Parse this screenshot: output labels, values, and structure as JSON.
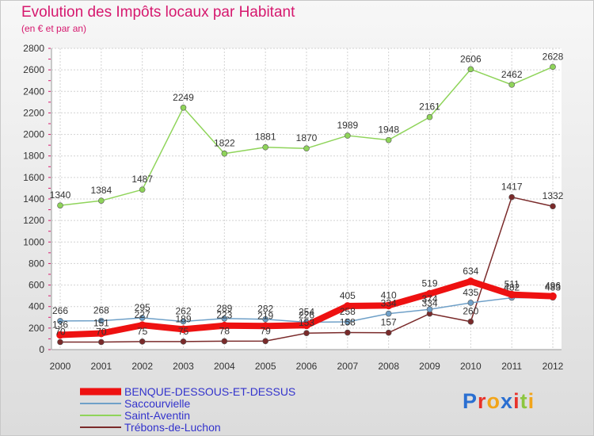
{
  "header": {
    "title": "Evolution des Impôts locaux par Habitant",
    "subtitle": "(en € et par an)"
  },
  "brand": {
    "letters": [
      "P",
      "r",
      "o",
      "x",
      "i",
      "t",
      "i"
    ],
    "colors": [
      "#2a6fd1",
      "#e8322a",
      "#f2a51a",
      "#2a6fd1",
      "#e8322a",
      "#8cc63f",
      "#f2a51a"
    ]
  },
  "chart_data": {
    "type": "line",
    "title": "Evolution des Impôts locaux par Habitant",
    "subtitle": "(en € et par an)",
    "xlabel": "",
    "ylabel": "",
    "x": [
      2000,
      2001,
      2002,
      2003,
      2004,
      2005,
      2006,
      2007,
      2008,
      2009,
      2010,
      2011,
      2012
    ],
    "ylim": [
      0,
      2800
    ],
    "yticks": [
      0,
      200,
      400,
      600,
      800,
      1000,
      1200,
      1400,
      1600,
      1800,
      2000,
      2200,
      2400,
      2600,
      2800
    ],
    "grid": true,
    "legend_position": "bottom-left",
    "series": [
      {
        "name": "Saint-Aventin",
        "color": "#8fd45a",
        "values": [
          1340,
          1384,
          1487,
          2249,
          1822,
          1881,
          1870,
          1989,
          1948,
          2161,
          2606,
          2462,
          2628
        ]
      },
      {
        "name": "Trébons-de-Luchon",
        "color": "#7a2a2a",
        "values": [
          70,
          70,
          75,
          75,
          78,
          79,
          153,
          158,
          157,
          334,
          260,
          1417,
          1332
        ]
      },
      {
        "name": "Saccourvielle",
        "color": "#6fa0c8",
        "values": [
          266,
          268,
          295,
          262,
          289,
          282,
          254,
          258,
          334,
          374,
          435,
          482,
          483
        ]
      },
      {
        "name": "BENQUE-DESSOUS-ET-DESSUS",
        "color": "#ee1111",
        "values": [
          136,
          151,
          227,
          189,
          223,
          219,
          226,
          405,
          410,
          519,
          634,
          511,
          496
        ]
      }
    ],
    "legend": [
      "BENQUE-DESSOUS-ET-DESSUS",
      "Saccourvielle",
      "Saint-Aventin",
      "Trébons-de-Luchon"
    ]
  }
}
